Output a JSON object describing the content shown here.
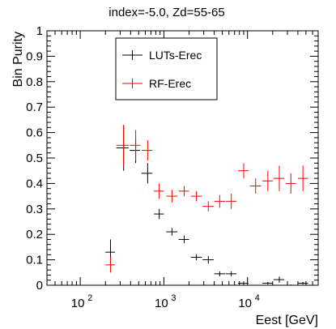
{
  "chart_data": {
    "type": "scatter",
    "title": "index=-5.0,  Zd=55-65",
    "xlabel": "Eest [GeV]",
    "ylabel": "Bin Purity",
    "x_scale": "log",
    "xlim": [
      40,
      70000
    ],
    "ylim": [
      0,
      1
    ],
    "grid": false,
    "legend_position": "top-center",
    "y_ticks": [
      "0",
      "0.1",
      "0.2",
      "0.3",
      "0.4",
      "0.5",
      "0.6",
      "0.7",
      "0.8",
      "0.9",
      "1"
    ],
    "x_ticks": [
      {
        "base": "10",
        "exp": "2"
      },
      {
        "base": "10",
        "exp": "3"
      },
      {
        "base": "10",
        "exp": "4"
      }
    ],
    "series": [
      {
        "name": "LUTs-Erec",
        "color": "#000000",
        "points": [
          {
            "x": 230,
            "xlo": 200,
            "xhi": 260,
            "y": 0.13,
            "yerr": 0.05
          },
          {
            "x": 330,
            "xlo": 270,
            "xhi": 380,
            "y": 0.54,
            "yerr": 0.09
          },
          {
            "x": 460,
            "xlo": 390,
            "xhi": 520,
            "y": 0.53,
            "yerr": 0.05
          },
          {
            "x": 640,
            "xlo": 540,
            "xhi": 730,
            "y": 0.44,
            "yerr": 0.04
          },
          {
            "x": 880,
            "xlo": 760,
            "xhi": 1000,
            "y": 0.28,
            "yerr": 0.02
          },
          {
            "x": 1250,
            "xlo": 1070,
            "xhi": 1450,
            "y": 0.21,
            "yerr": 0.015
          },
          {
            "x": 1750,
            "xlo": 1500,
            "xhi": 2000,
            "y": 0.18,
            "yerr": 0.015
          },
          {
            "x": 2450,
            "xlo": 2100,
            "xhi": 2850,
            "y": 0.11,
            "yerr": 0.012
          },
          {
            "x": 3400,
            "xlo": 2900,
            "xhi": 3950,
            "y": 0.1,
            "yerr": 0.015
          },
          {
            "x": 4650,
            "xlo": 4000,
            "xhi": 5400,
            "y": 0.045,
            "yerr": 0.01
          },
          {
            "x": 6400,
            "xlo": 5500,
            "xhi": 7400,
            "y": 0.045,
            "yerr": 0.01
          },
          {
            "x": 9000,
            "xlo": 7700,
            "xhi": 10300,
            "y": 0.008,
            "yerr": 0.005
          },
          {
            "x": 17500,
            "xlo": 15000,
            "xhi": 20000,
            "y": 0.008,
            "yerr": 0.005
          },
          {
            "x": 24000,
            "xlo": 20500,
            "xhi": 27500,
            "y": 0.022,
            "yerr": 0.012
          },
          {
            "x": 33000,
            "xlo": 28500,
            "xhi": 38000,
            "y": 0.0,
            "yerr": 0.003
          },
          {
            "x": 46000,
            "xlo": 40000,
            "xhi": 53000,
            "y": 0.008,
            "yerr": 0.005
          }
        ]
      },
      {
        "name": "RF-Erec",
        "color": "#ff0000",
        "points": [
          {
            "x": 230,
            "xlo": 200,
            "xhi": 260,
            "y": 0.08,
            "yerr": 0.03
          },
          {
            "x": 330,
            "xlo": 270,
            "xhi": 380,
            "y": 0.55,
            "yerr": 0.08
          },
          {
            "x": 460,
            "xlo": 390,
            "xhi": 520,
            "y": 0.55,
            "yerr": 0.06
          },
          {
            "x": 640,
            "xlo": 540,
            "xhi": 730,
            "y": 0.53,
            "yerr": 0.04
          },
          {
            "x": 880,
            "xlo": 760,
            "xhi": 1000,
            "y": 0.37,
            "yerr": 0.03
          },
          {
            "x": 1250,
            "xlo": 1070,
            "xhi": 1450,
            "y": 0.35,
            "yerr": 0.025
          },
          {
            "x": 1750,
            "xlo": 1500,
            "xhi": 2000,
            "y": 0.37,
            "yerr": 0.02
          },
          {
            "x": 2450,
            "xlo": 2100,
            "xhi": 2850,
            "y": 0.35,
            "yerr": 0.02
          },
          {
            "x": 3400,
            "xlo": 2900,
            "xhi": 3950,
            "y": 0.31,
            "yerr": 0.02
          },
          {
            "x": 4650,
            "xlo": 4000,
            "xhi": 5400,
            "y": 0.33,
            "yerr": 0.025
          },
          {
            "x": 6400,
            "xlo": 5500,
            "xhi": 7400,
            "y": 0.33,
            "yerr": 0.03
          },
          {
            "x": 9000,
            "xlo": 7700,
            "xhi": 10300,
            "y": 0.45,
            "yerr": 0.03
          },
          {
            "x": 12500,
            "xlo": 10700,
            "xhi": 14500,
            "y": 0.39,
            "yerr": 0.03
          },
          {
            "x": 17500,
            "xlo": 15000,
            "xhi": 20000,
            "y": 0.41,
            "yerr": 0.04
          },
          {
            "x": 24000,
            "xlo": 20500,
            "xhi": 27500,
            "y": 0.42,
            "yerr": 0.05
          },
          {
            "x": 33000,
            "xlo": 28500,
            "xhi": 38000,
            "y": 0.4,
            "yerr": 0.04
          },
          {
            "x": 46000,
            "xlo": 40000,
            "xhi": 53000,
            "y": 0.42,
            "yerr": 0.05
          }
        ]
      }
    ]
  }
}
